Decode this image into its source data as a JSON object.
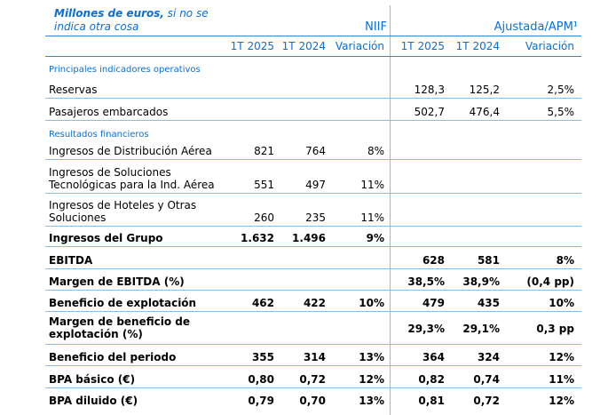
{
  "header": {
    "units_bold": "Millones de euros,",
    "units_rest": " si no se",
    "units_line2": "indica otra cosa",
    "niif": "NIIF",
    "apm": "Ajustada/APM¹"
  },
  "columns": [
    "1T 2025",
    "1T 2024",
    "Variación",
    "1T 2025",
    "1T 2024",
    "Variación"
  ],
  "sections": {
    "ops": "Principales indicadores operativos",
    "fin": "Resultados financieros"
  },
  "rows": [
    {
      "label": "Reservas",
      "v": [
        "",
        "",
        "",
        "128,3",
        "125,2",
        "2,5%"
      ]
    },
    {
      "label": "Pasajeros embarcados",
      "v": [
        "",
        "",
        "",
        "502,7",
        "476,4",
        "5,5%"
      ]
    },
    {
      "label": "Ingresos de Distribución Aérea",
      "v": [
        "821",
        "764",
        "8%",
        "",
        "",
        ""
      ]
    },
    {
      "label": "Ingresos de Soluciones Tecnológicas para la Ind. Aérea",
      "v": [
        "551",
        "497",
        "11%",
        "",
        "",
        ""
      ]
    },
    {
      "label": "Ingresos de Hoteles y Otras Soluciones",
      "v": [
        "260",
        "235",
        "11%",
        "",
        "",
        ""
      ]
    },
    {
      "label": "Ingresos del Grupo",
      "v": [
        "1.632",
        "1.496",
        "9%",
        "",
        "",
        ""
      ]
    },
    {
      "label": "EBITDA",
      "v": [
        "",
        "",
        "",
        "628",
        "581",
        "8%"
      ]
    },
    {
      "label": "Margen de EBITDA (%)",
      "v": [
        "",
        "",
        "",
        "38,5%",
        "38,9%",
        "(0,4 pp)"
      ]
    },
    {
      "label": "Beneficio de explotación",
      "v": [
        "462",
        "422",
        "10%",
        "479",
        "435",
        "10%"
      ]
    },
    {
      "label": "Margen de beneficio de explotación (%)",
      "v": [
        "",
        "",
        "",
        "29,3%",
        "29,1%",
        "0,3 pp"
      ]
    },
    {
      "label": "Beneficio del periodo",
      "v": [
        "355",
        "314",
        "13%",
        "364",
        "324",
        "12%"
      ]
    },
    {
      "label": "BPA básico (€)",
      "v": [
        "0,80",
        "0,72",
        "12%",
        "0,82",
        "0,74",
        "11%"
      ]
    },
    {
      "label": "BPA diluido (€)",
      "v": [
        "0,79",
        "0,70",
        "13%",
        "0,81",
        "0,72",
        "12%"
      ]
    }
  ]
}
